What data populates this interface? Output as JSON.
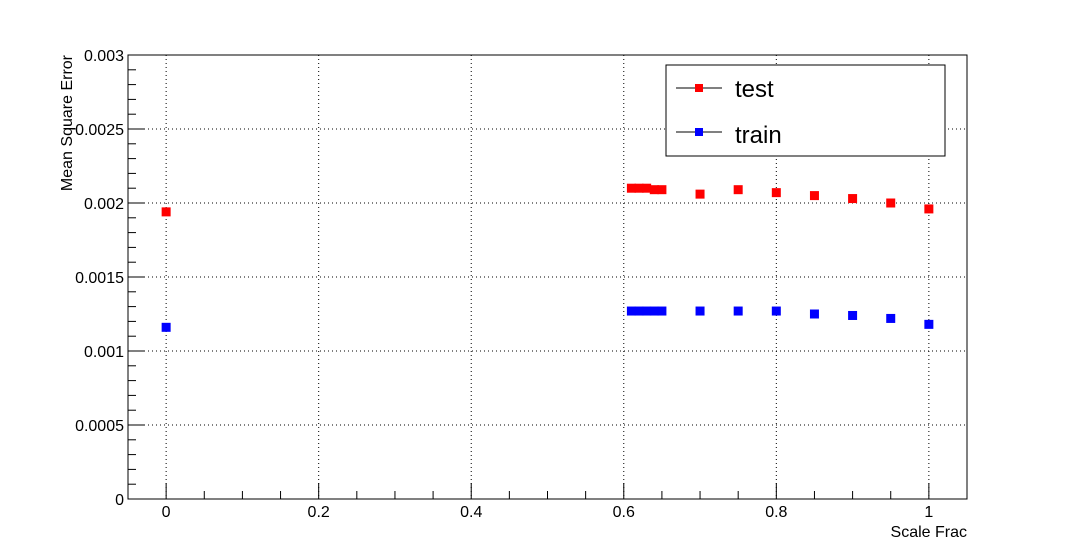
{
  "chart_data": {
    "type": "scatter",
    "xlabel": "Scale Frac",
    "ylabel": "Mean Square Error",
    "xlim": [
      -0.05,
      1.05
    ],
    "ylim": [
      0,
      0.003
    ],
    "grid": true,
    "legend_position": "top-right",
    "x_ticks": [
      {
        "value": 0,
        "label": "0"
      },
      {
        "value": 0.2,
        "label": "0.2"
      },
      {
        "value": 0.4,
        "label": "0.4"
      },
      {
        "value": 0.6,
        "label": "0.6"
      },
      {
        "value": 0.8,
        "label": "0.8"
      },
      {
        "value": 1,
        "label": "1"
      }
    ],
    "y_ticks": [
      {
        "value": 0,
        "label": "0"
      },
      {
        "value": 0.0005,
        "label": "0.0005"
      },
      {
        "value": 0.001,
        "label": "0.001"
      },
      {
        "value": 0.0015,
        "label": "0.0015"
      },
      {
        "value": 0.002,
        "label": "0.002"
      },
      {
        "value": 0.0025,
        "label": "0.0025"
      },
      {
        "value": 0.003,
        "label": "0.003"
      }
    ],
    "series": [
      {
        "name": "test",
        "color": "#ff0000",
        "marker": "square",
        "points": [
          {
            "x": 0,
            "y": 0.00194
          },
          {
            "x": 0.61,
            "y": 0.0021
          },
          {
            "x": 0.62,
            "y": 0.0021
          },
          {
            "x": 0.63,
            "y": 0.0021
          },
          {
            "x": 0.64,
            "y": 0.00209
          },
          {
            "x": 0.65,
            "y": 0.00209
          },
          {
            "x": 0.7,
            "y": 0.00206
          },
          {
            "x": 0.75,
            "y": 0.00209
          },
          {
            "x": 0.8,
            "y": 0.00207
          },
          {
            "x": 0.85,
            "y": 0.00205
          },
          {
            "x": 0.9,
            "y": 0.00203
          },
          {
            "x": 0.95,
            "y": 0.002
          },
          {
            "x": 1,
            "y": 0.00196
          }
        ]
      },
      {
        "name": "train",
        "color": "#0000ff",
        "marker": "square",
        "points": [
          {
            "x": 0,
            "y": 0.00116
          },
          {
            "x": 0.61,
            "y": 0.00127
          },
          {
            "x": 0.62,
            "y": 0.00127
          },
          {
            "x": 0.63,
            "y": 0.00127
          },
          {
            "x": 0.64,
            "y": 0.00127
          },
          {
            "x": 0.65,
            "y": 0.00127
          },
          {
            "x": 0.7,
            "y": 0.00127
          },
          {
            "x": 0.75,
            "y": 0.00127
          },
          {
            "x": 0.8,
            "y": 0.00127
          },
          {
            "x": 0.85,
            "y": 0.00125
          },
          {
            "x": 0.9,
            "y": 0.00124
          },
          {
            "x": 0.95,
            "y": 0.00122
          },
          {
            "x": 1,
            "y": 0.00118
          }
        ]
      }
    ]
  }
}
